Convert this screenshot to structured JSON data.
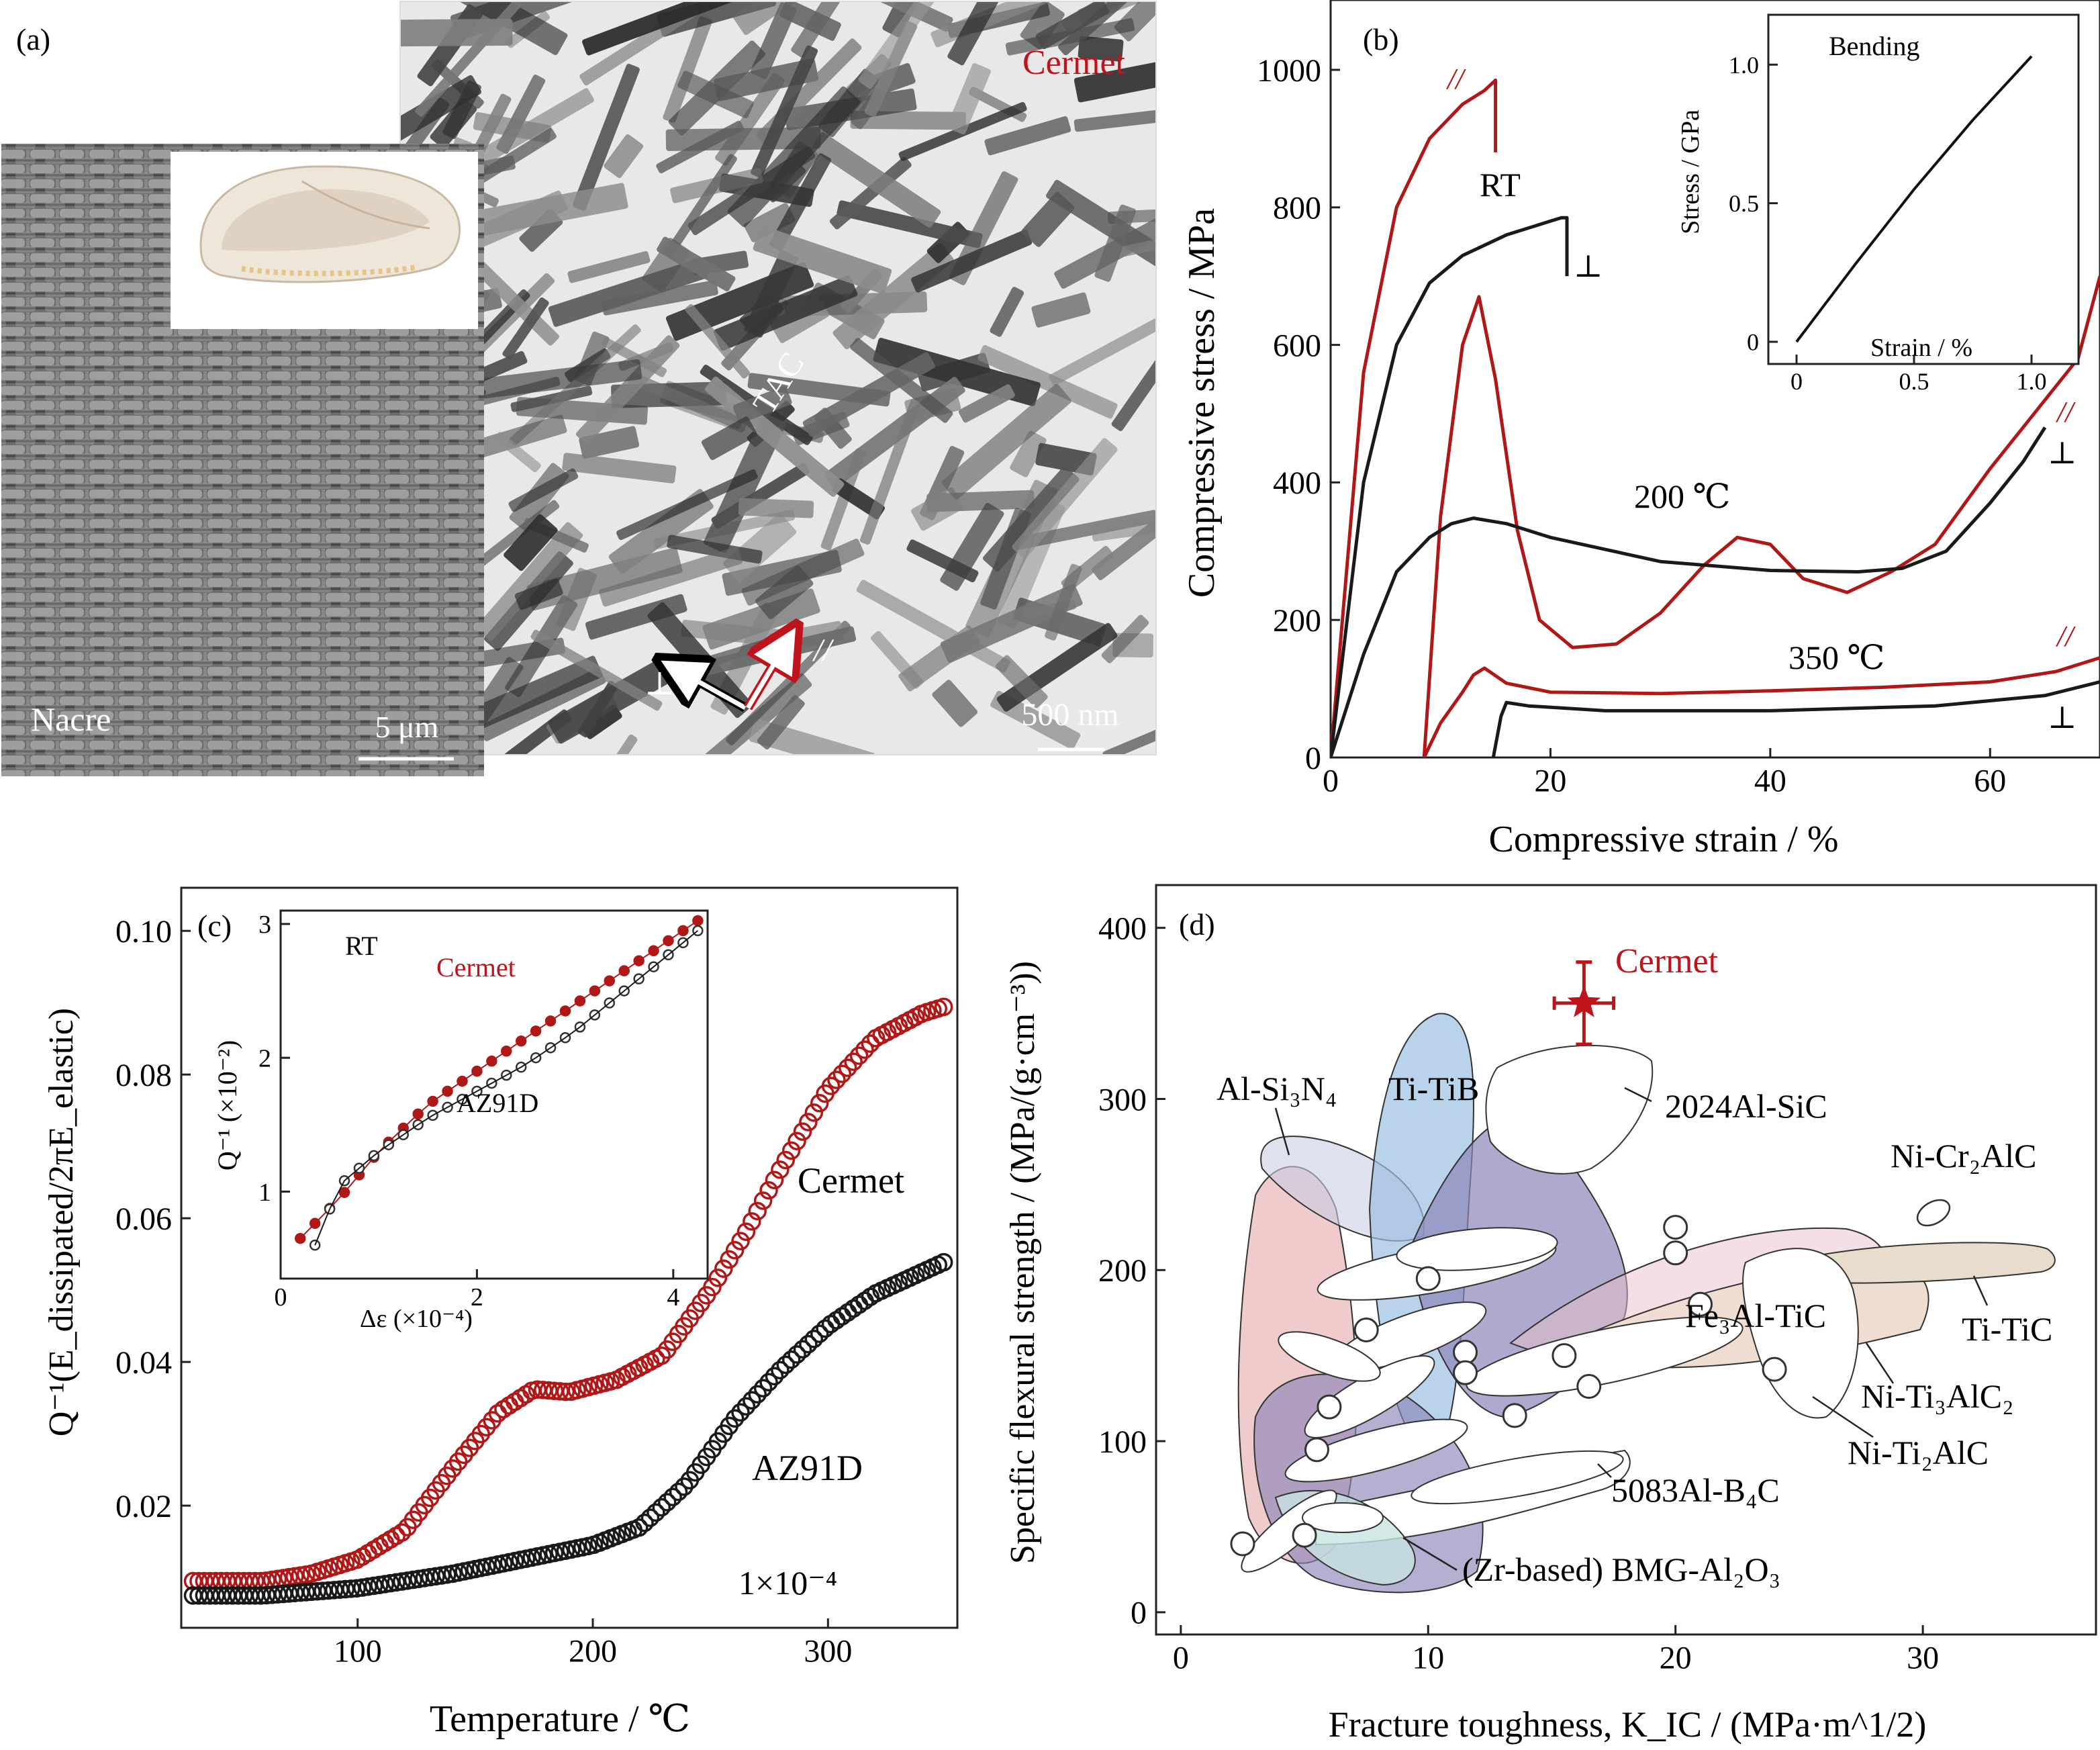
{
  "colors": {
    "red": "#b01818",
    "black": "#1a1a1a",
    "cermet_label": "#c0141c"
  },
  "panel_a": {
    "tag": "(a)",
    "nacre_label": "Nacre",
    "nacre_scale": "5 μm",
    "cermet_label": "Cermet",
    "cermet_scale": "500 nm",
    "tac_label": "TAC",
    "perp_symbol": "⊥",
    "par_symbol": "//"
  },
  "panel_b": {
    "tag": "(b)",
    "inset_label": "Bending",
    "labels": {
      "rt": "RT",
      "t200": "200 ℃",
      "t350": "350 ℃"
    }
  },
  "panel_c": {
    "tag": "(c)",
    "labels": {
      "cermet": "Cermet",
      "az91d": "AZ91D",
      "strain_amp": "1×10⁻⁴"
    }
  },
  "panel_d": {
    "tag": "(d)",
    "cermet_label": "Cermet",
    "materials": [
      "Al-Si₃N₄",
      "Ti-TiB",
      "2024Al-SiC",
      "Ni-Cr₂AlC",
      "Fe₃Al-TiC",
      "Ti-TiC",
      "Ni-Ti₃AlC₂",
      "Ni-Ti₂AlC",
      "5083Al-B₄C",
      "(Zr-based) BMG-Al₂O₃"
    ]
  },
  "chart_data": [
    {
      "panel": "b",
      "type": "line",
      "xlabel": "Compressive strain / %",
      "ylabel": "Compressive stress / MPa",
      "xlim": [
        0,
        70
      ],
      "ylim": [
        0,
        1100
      ],
      "xticks": [
        0,
        20,
        40,
        60
      ],
      "yticks": [
        0,
        200,
        400,
        600,
        800,
        1000
      ],
      "series": [
        {
          "name": "RT //",
          "color": "red",
          "x": [
            0,
            3,
            6,
            9,
            12,
            14,
            15,
            15
          ],
          "y": [
            0,
            560,
            800,
            900,
            950,
            970,
            985,
            880
          ]
        },
        {
          "name": "RT ⊥",
          "color": "black",
          "x": [
            0,
            3,
            6,
            9,
            12,
            16,
            20,
            21,
            21.5,
            21.5
          ],
          "y": [
            0,
            400,
            600,
            690,
            730,
            760,
            780,
            785,
            785,
            700
          ]
        },
        {
          "name": "200 ℃ //",
          "color": "red",
          "x": [
            8.5,
            10,
            12,
            13.5,
            15,
            17,
            19,
            22,
            26,
            30,
            34,
            37,
            40,
            43,
            47,
            51,
            55,
            60,
            64,
            66,
            68,
            70
          ],
          "y": [
            0,
            350,
            600,
            670,
            550,
            330,
            200,
            160,
            165,
            210,
            280,
            320,
            310,
            260,
            240,
            270,
            310,
            420,
            500,
            540,
            580,
            700
          ]
        },
        {
          "name": "200 ℃ ⊥",
          "color": "black",
          "x": [
            0,
            3,
            6,
            9,
            11,
            13,
            16,
            20,
            30,
            40,
            48,
            52,
            56,
            60,
            63,
            65
          ],
          "y": [
            0,
            150,
            270,
            320,
            340,
            348,
            340,
            320,
            285,
            272,
            270,
            275,
            300,
            370,
            430,
            480
          ]
        },
        {
          "name": "350 ℃ //",
          "color": "red",
          "x": [
            8.5,
            10,
            12,
            13,
            14,
            16,
            20,
            30,
            40,
            50,
            60,
            66,
            70
          ],
          "y": [
            0,
            50,
            95,
            120,
            130,
            108,
            95,
            93,
            97,
            102,
            110,
            125,
            145
          ]
        },
        {
          "name": "350 ℃ ⊥",
          "color": "black",
          "x": [
            14.8,
            15.5,
            16,
            18,
            25,
            40,
            55,
            65,
            70
          ],
          "y": [
            0,
            60,
            80,
            75,
            68,
            68,
            75,
            90,
            110
          ]
        }
      ],
      "inset": {
        "type": "line",
        "xlabel": "Strain / %",
        "ylabel": "Stress / GPa",
        "xlim": [
          -0.12,
          1.2
        ],
        "ylim": [
          -0.08,
          1.18
        ],
        "xticks": [
          0,
          0.5,
          1.0
        ],
        "yticks": [
          0,
          0.5,
          1.0
        ],
        "x": [
          0,
          0.25,
          0.5,
          0.75,
          1.0
        ],
        "y": [
          0,
          0.28,
          0.55,
          0.8,
          1.03
        ]
      }
    },
    {
      "panel": "c",
      "type": "scatter",
      "xlabel": "Temperature / ℃",
      "ylabel": "Q⁻¹(E_dissipated/2πE_elastic)",
      "xlim": [
        25,
        355
      ],
      "ylim": [
        0.003,
        0.106
      ],
      "xticks": [
        100,
        200,
        300
      ],
      "yticks": [
        0.02,
        0.04,
        0.06,
        0.08,
        0.1
      ],
      "series": [
        {
          "name": "Cermet",
          "color": "red",
          "x": [
            30,
            60,
            80,
            100,
            120,
            140,
            160,
            175,
            190,
            210,
            230,
            250,
            265,
            280,
            300,
            320,
            340,
            350
          ],
          "y": [
            0.0095,
            0.0095,
            0.0105,
            0.0125,
            0.0165,
            0.025,
            0.033,
            0.0362,
            0.0358,
            0.0375,
            0.041,
            0.05,
            0.058,
            0.067,
            0.078,
            0.085,
            0.0885,
            0.0895
          ]
        },
        {
          "name": "AZ91D",
          "color": "black",
          "x": [
            30,
            60,
            100,
            140,
            170,
            200,
            220,
            240,
            260,
            280,
            300,
            320,
            340,
            350
          ],
          "y": [
            0.0075,
            0.0075,
            0.0085,
            0.0105,
            0.0125,
            0.0145,
            0.017,
            0.023,
            0.032,
            0.039,
            0.045,
            0.0495,
            0.0525,
            0.054
          ]
        }
      ],
      "inset": {
        "type": "scatter",
        "label": "RT",
        "xlabel": "Δε (×10⁻⁴)",
        "ylabel": "Q⁻¹ (×10⁻²)",
        "xlim": [
          0,
          4.35
        ],
        "ylim": [
          0.35,
          3.1
        ],
        "xticks": [
          0,
          2,
          4
        ],
        "yticks": [
          1,
          2,
          3
        ],
        "series": [
          {
            "name": "Cermet",
            "color": "red",
            "x": [
              0.2,
              0.6,
              1.0,
              1.5,
              2.0,
              2.5,
              3.0,
              3.5,
              4.0,
              4.3
            ],
            "y": [
              0.65,
              0.95,
              1.3,
              1.65,
              1.9,
              2.15,
              2.4,
              2.65,
              2.9,
              3.05
            ]
          },
          {
            "name": "AZ91D",
            "color": "black",
            "x": [
              0.35,
              0.6,
              1.0,
              1.5,
              2.0,
              2.5,
              3.0,
              3.5,
              4.0,
              4.3
            ],
            "y": [
              0.6,
              1.05,
              1.3,
              1.55,
              1.75,
              1.95,
              2.2,
              2.5,
              2.8,
              2.98
            ]
          }
        ]
      }
    },
    {
      "panel": "d",
      "type": "scatter",
      "xlabel": "Fracture toughness, K_IC / (MPa·m^1/2)",
      "ylabel": "Specific flexural strength / (MPa/(g·cm⁻³))",
      "xlim": [
        -1,
        37
      ],
      "ylim": [
        -13,
        425
      ],
      "xticks": [
        0,
        10,
        20,
        30
      ],
      "yticks": [
        0,
        100,
        200,
        300,
        400
      ],
      "points": [
        {
          "name": "Cermet",
          "x": 16.3,
          "y": 356,
          "xerr": 1.2,
          "yerr": 24
        }
      ],
      "markers_x": [
        2.5,
        5.5,
        5.0,
        6.0,
        7.5,
        10.0,
        11.5,
        11.5,
        13.5,
        15.5,
        16.5,
        20.0,
        21.0,
        24.0,
        20.0
      ],
      "markers_y": [
        40,
        95,
        45,
        120,
        165,
        195,
        152,
        140,
        115,
        150,
        132,
        225,
        180,
        142,
        210
      ]
    }
  ]
}
